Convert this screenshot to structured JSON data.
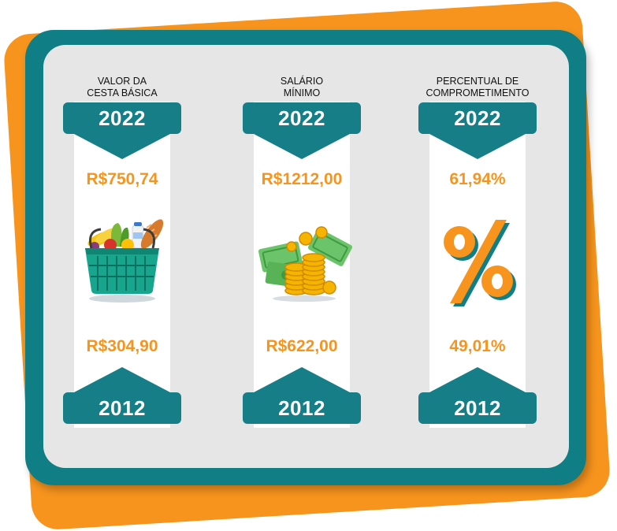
{
  "columns": [
    {
      "title": "VALOR DA\nCESTA BÁSICA",
      "year_top": "2022",
      "value_top": "R$750,74",
      "illustration": "grocery-basket-icon",
      "value_bottom": "R$304,90",
      "year_bottom": "2012"
    },
    {
      "title": "SALÁRIO\nMÍNIMO",
      "year_top": "2022",
      "value_top": "R$1212,00",
      "illustration": "money-coins-icon",
      "value_bottom": "R$622,00",
      "year_bottom": "2012"
    },
    {
      "title": "PERCENTUAL DE\nCOMPROMETIMENTO",
      "year_top": "2022",
      "value_top": "61,94%",
      "illustration": "percent-icon",
      "value_bottom": "49,01%",
      "year_bottom": "2012"
    }
  ],
  "colors": {
    "teal": "#157e86",
    "orange": "#f7941d",
    "panel": "#e6e6e7"
  }
}
